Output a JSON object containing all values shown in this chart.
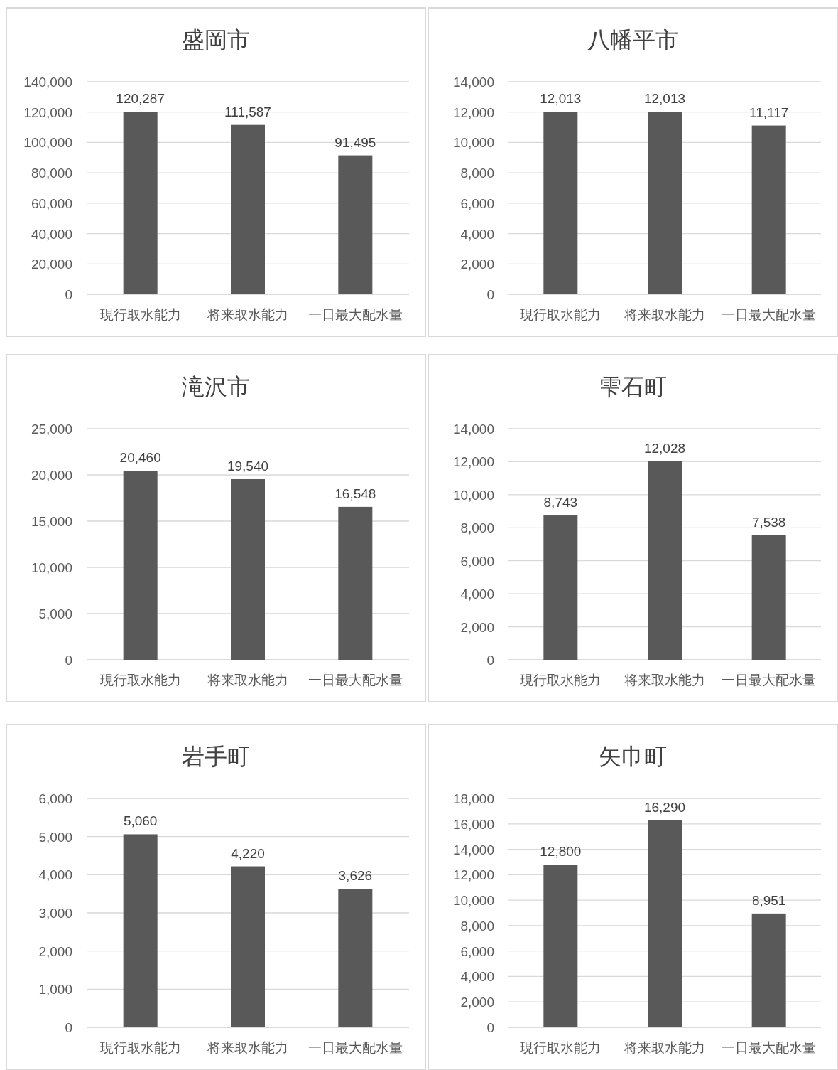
{
  "chart_data": [
    {
      "type": "bar",
      "title": "盛岡市",
      "categories": [
        "現行取水能力",
        "将来取水能力",
        "一日最大配水量"
      ],
      "values": [
        120287,
        111587,
        91495
      ],
      "value_labels": [
        "120,287",
        "111,587",
        "91,495"
      ],
      "color": "#595959",
      "ylim": [
        0,
        140000
      ],
      "yticks": [
        {
          "value": 0,
          "label": "0"
        },
        {
          "value": 20000,
          "label": "20,000"
        },
        {
          "value": 40000,
          "label": "40,000"
        },
        {
          "value": 60000,
          "label": "60,000"
        },
        {
          "value": 80000,
          "label": "80,000"
        },
        {
          "value": 100000,
          "label": "100,000"
        },
        {
          "value": 120000,
          "label": "120,000"
        },
        {
          "value": 140000,
          "label": "140,000"
        }
      ],
      "grid": "y"
    },
    {
      "type": "bar",
      "title": "八幡平市",
      "categories": [
        "現行取水能力",
        "将来取水能力",
        "一日最大配水量"
      ],
      "values": [
        12013,
        12013,
        11117
      ],
      "value_labels": [
        "12,013",
        "12,013",
        "11,117"
      ],
      "color": "#595959",
      "ylim": [
        0,
        14000
      ],
      "yticks": [
        {
          "value": 0,
          "label": "0"
        },
        {
          "value": 2000,
          "label": "2,000"
        },
        {
          "value": 4000,
          "label": "4,000"
        },
        {
          "value": 6000,
          "label": "6,000"
        },
        {
          "value": 8000,
          "label": "8,000"
        },
        {
          "value": 10000,
          "label": "10,000"
        },
        {
          "value": 12000,
          "label": "12,000"
        },
        {
          "value": 14000,
          "label": "14,000"
        }
      ],
      "grid": "y"
    },
    {
      "type": "bar",
      "title": "滝沢市",
      "categories": [
        "現行取水能力",
        "将来取水能力",
        "一日最大配水量"
      ],
      "values": [
        20460,
        19540,
        16548
      ],
      "value_labels": [
        "20,460",
        "19,540",
        "16,548"
      ],
      "color": "#595959",
      "ylim": [
        0,
        25000
      ],
      "yticks": [
        {
          "value": 0,
          "label": "0"
        },
        {
          "value": 5000,
          "label": "5,000"
        },
        {
          "value": 10000,
          "label": "10,000"
        },
        {
          "value": 15000,
          "label": "15,000"
        },
        {
          "value": 20000,
          "label": "20,000"
        },
        {
          "value": 25000,
          "label": "25,000"
        }
      ],
      "grid": "y"
    },
    {
      "type": "bar",
      "title": "雫石町",
      "categories": [
        "現行取水能力",
        "将来取水能力",
        "一日最大配水量"
      ],
      "values": [
        8743,
        12028,
        7538
      ],
      "value_labels": [
        "8,743",
        "12,028",
        "7,538"
      ],
      "color": "#595959",
      "ylim": [
        0,
        14000
      ],
      "yticks": [
        {
          "value": 0,
          "label": "0"
        },
        {
          "value": 2000,
          "label": "2,000"
        },
        {
          "value": 4000,
          "label": "4,000"
        },
        {
          "value": 6000,
          "label": "6,000"
        },
        {
          "value": 8000,
          "label": "8,000"
        },
        {
          "value": 10000,
          "label": "10,000"
        },
        {
          "value": 12000,
          "label": "12,000"
        },
        {
          "value": 14000,
          "label": "14,000"
        }
      ],
      "grid": "y"
    },
    {
      "type": "bar",
      "title": "岩手町",
      "categories": [
        "現行取水能力",
        "将来取水能力",
        "一日最大配水量"
      ],
      "values": [
        5060,
        4220,
        3626
      ],
      "value_labels": [
        "5,060",
        "4,220",
        "3,626"
      ],
      "color": "#595959",
      "ylim": [
        0,
        6000
      ],
      "yticks": [
        {
          "value": 0,
          "label": "0"
        },
        {
          "value": 1000,
          "label": "1,000"
        },
        {
          "value": 2000,
          "label": "2,000"
        },
        {
          "value": 3000,
          "label": "3,000"
        },
        {
          "value": 4000,
          "label": "4,000"
        },
        {
          "value": 5000,
          "label": "5,000"
        },
        {
          "value": 6000,
          "label": "6,000"
        }
      ],
      "grid": "y"
    },
    {
      "type": "bar",
      "title": "矢巾町",
      "categories": [
        "現行取水能力",
        "将来取水能力",
        "一日最大配水量"
      ],
      "values": [
        12800,
        16290,
        8951
      ],
      "value_labels": [
        "12,800",
        "16,290",
        "8,951"
      ],
      "color": "#595959",
      "ylim": [
        0,
        18000
      ],
      "yticks": [
        {
          "value": 0,
          "label": "0"
        },
        {
          "value": 2000,
          "label": "2,000"
        },
        {
          "value": 4000,
          "label": "4,000"
        },
        {
          "value": 6000,
          "label": "6,000"
        },
        {
          "value": 8000,
          "label": "8,000"
        },
        {
          "value": 10000,
          "label": "10,000"
        },
        {
          "value": 12000,
          "label": "12,000"
        },
        {
          "value": 14000,
          "label": "14,000"
        },
        {
          "value": 16000,
          "label": "16,000"
        },
        {
          "value": 18000,
          "label": "18,000"
        }
      ],
      "grid": "y"
    }
  ]
}
